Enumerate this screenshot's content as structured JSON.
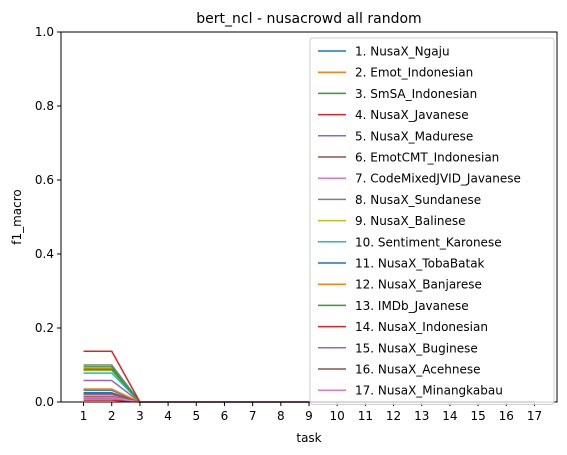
{
  "chart_data": {
    "type": "line",
    "title": "bert_ncl - nusacrowd all random",
    "xlabel": "task",
    "ylabel": "f1_macro",
    "x": [
      1,
      2,
      3,
      4,
      5,
      6,
      7,
      8,
      9,
      10,
      11,
      12,
      13,
      14,
      15,
      16,
      17
    ],
    "xlim": [
      0.2,
      17.8
    ],
    "ylim": [
      0,
      1
    ],
    "yticks": [
      0.0,
      0.2,
      0.4,
      0.6,
      0.8,
      1.0
    ],
    "ytick_labels": [
      "0.0",
      "0.2",
      "0.4",
      "0.6",
      "0.8",
      "1.0"
    ],
    "grid": false,
    "legend_position": "upper-right",
    "series": [
      {
        "name": "1. NusaX_Ngaju",
        "color": "#1f77b4",
        "values": [
          0.032,
          0.032,
          0,
          0,
          0,
          0,
          0,
          0,
          0,
          0,
          0,
          0,
          0,
          0,
          0,
          0,
          0
        ]
      },
      {
        "name": "2. Emot_Indonesian",
        "color": "#ff7f0e",
        "values": [
          0.09,
          0.09,
          0,
          0,
          0,
          0,
          0,
          0,
          0,
          0,
          0,
          0,
          0,
          0,
          0,
          0,
          0
        ]
      },
      {
        "name": "3. SmSA_Indonesian",
        "color": "#2ca02c",
        "values": [
          0.095,
          0.095,
          0,
          0,
          0,
          0,
          0,
          0,
          0,
          0,
          0,
          0,
          0,
          0,
          0,
          0,
          0
        ]
      },
      {
        "name": "4. NusaX_Javanese",
        "color": "#d62728",
        "values": [
          0.005,
          0.005,
          0,
          0,
          0,
          0,
          0,
          0,
          0,
          0,
          0,
          0,
          0,
          0,
          0,
          0,
          0
        ]
      },
      {
        "name": "5. NusaX_Madurese",
        "color": "#9467bd",
        "values": [
          0.058,
          0.058,
          0,
          0,
          0,
          0,
          0,
          0,
          0,
          0,
          0,
          0,
          0,
          0,
          0,
          0,
          0
        ]
      },
      {
        "name": "6. EmotCMT_Indonesian",
        "color": "#8c564b",
        "values": [
          0.015,
          0.015,
          0,
          0,
          0,
          0,
          0,
          0,
          0,
          0,
          0,
          0,
          0,
          0,
          0,
          0,
          0
        ]
      },
      {
        "name": "7. CodeMixedJVID_Javanese",
        "color": "#e377c2",
        "values": [
          0.02,
          0.02,
          0,
          0,
          0,
          0,
          0,
          0,
          0,
          0,
          0,
          0,
          0,
          0,
          0,
          0,
          0
        ]
      },
      {
        "name": "8. NusaX_Sundanese",
        "color": "#7f7f7f",
        "values": [
          0.1,
          0.1,
          0,
          0,
          0,
          0,
          0,
          0,
          0,
          0,
          0,
          0,
          0,
          0,
          0,
          0,
          0
        ]
      },
      {
        "name": "9. NusaX_Balinese",
        "color": "#bcbd22",
        "values": [
          0.085,
          0.085,
          0,
          0,
          0,
          0,
          0,
          0,
          0,
          0,
          0,
          0,
          0,
          0,
          0,
          0,
          0
        ]
      },
      {
        "name": "10. Sentiment_Karonese",
        "color": "#17becf",
        "values": [
          0.078,
          0.078,
          0,
          0,
          0,
          0,
          0,
          0,
          0,
          0,
          0,
          0,
          0,
          0,
          0,
          0,
          0
        ]
      },
      {
        "name": "11. NusaX_TobaBatak",
        "color": "#1f77b4",
        "values": [
          0.025,
          0.025,
          0,
          0,
          0,
          0,
          0,
          0,
          0,
          0,
          0,
          0,
          0,
          0,
          0,
          0,
          0
        ]
      },
      {
        "name": "12. NusaX_Banjarese",
        "color": "#ff7f0e",
        "values": [
          0.035,
          0.035,
          0,
          0,
          0,
          0,
          0,
          0,
          0,
          0,
          0,
          0,
          0,
          0,
          0,
          0,
          0
        ]
      },
      {
        "name": "13. IMDb_Javanese",
        "color": "#2ca02c",
        "values": [
          0.088,
          0.088,
          0,
          0,
          0,
          0,
          0,
          0,
          0,
          0,
          0,
          0,
          0,
          0,
          0,
          0,
          0
        ]
      },
      {
        "name": "14. NusaX_Indonesian",
        "color": "#d62728",
        "values": [
          0.137,
          0.137,
          0,
          0,
          0,
          0,
          0,
          0,
          0,
          0,
          0,
          0,
          0,
          0,
          0,
          0,
          0
        ]
      },
      {
        "name": "15. NusaX_Buginese",
        "color": "#9467bd",
        "values": [
          0.01,
          0.01,
          0,
          0,
          0,
          0,
          0,
          0,
          0,
          0,
          0,
          0,
          0,
          0,
          0,
          0,
          0
        ]
      },
      {
        "name": "16. NusaX_Acehnese",
        "color": "#8c564b",
        "values": [
          0.022,
          0.022,
          0,
          0,
          0,
          0,
          0,
          0,
          0,
          0,
          0,
          0,
          0,
          0,
          0,
          0,
          0
        ]
      },
      {
        "name": "17. NusaX_Minangkabau",
        "color": "#e377c2",
        "values": [
          0.012,
          0.012,
          0,
          0,
          0,
          0,
          0,
          0,
          0,
          0,
          0,
          0,
          0,
          0,
          0,
          0,
          0
        ]
      }
    ]
  }
}
